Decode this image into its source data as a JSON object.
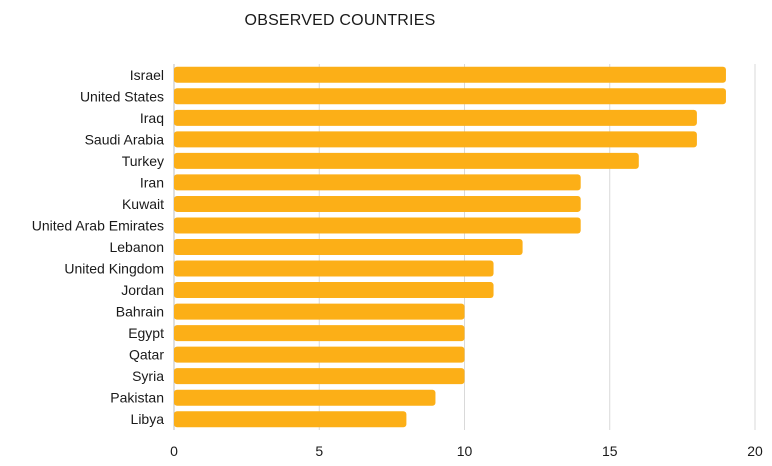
{
  "chart_data": {
    "type": "bar",
    "orientation": "horizontal",
    "title": "OBSERVED COUNTRIES",
    "categories": [
      "Israel",
      "United States",
      "Iraq",
      "Saudi Arabia",
      "Turkey",
      "Iran",
      "Kuwait",
      "United Arab Emirates",
      "Lebanon",
      "United Kingdom",
      "Jordan",
      "Bahrain",
      "Egypt",
      "Qatar",
      "Syria",
      "Pakistan",
      "Libya"
    ],
    "values": [
      19,
      19,
      18,
      18,
      16,
      14,
      14,
      14,
      12,
      11,
      11,
      10,
      10,
      10,
      10,
      9,
      8
    ],
    "xlim": [
      0,
      20
    ],
    "xticks": [
      "0",
      "5",
      "10",
      "15",
      "20"
    ],
    "xlabel": "",
    "ylabel": "",
    "grid": "vertical",
    "legend": "none",
    "colors": {
      "bar": "#FCAF17",
      "grid": "#d9d9d9",
      "text": "#1a1a1a"
    }
  }
}
